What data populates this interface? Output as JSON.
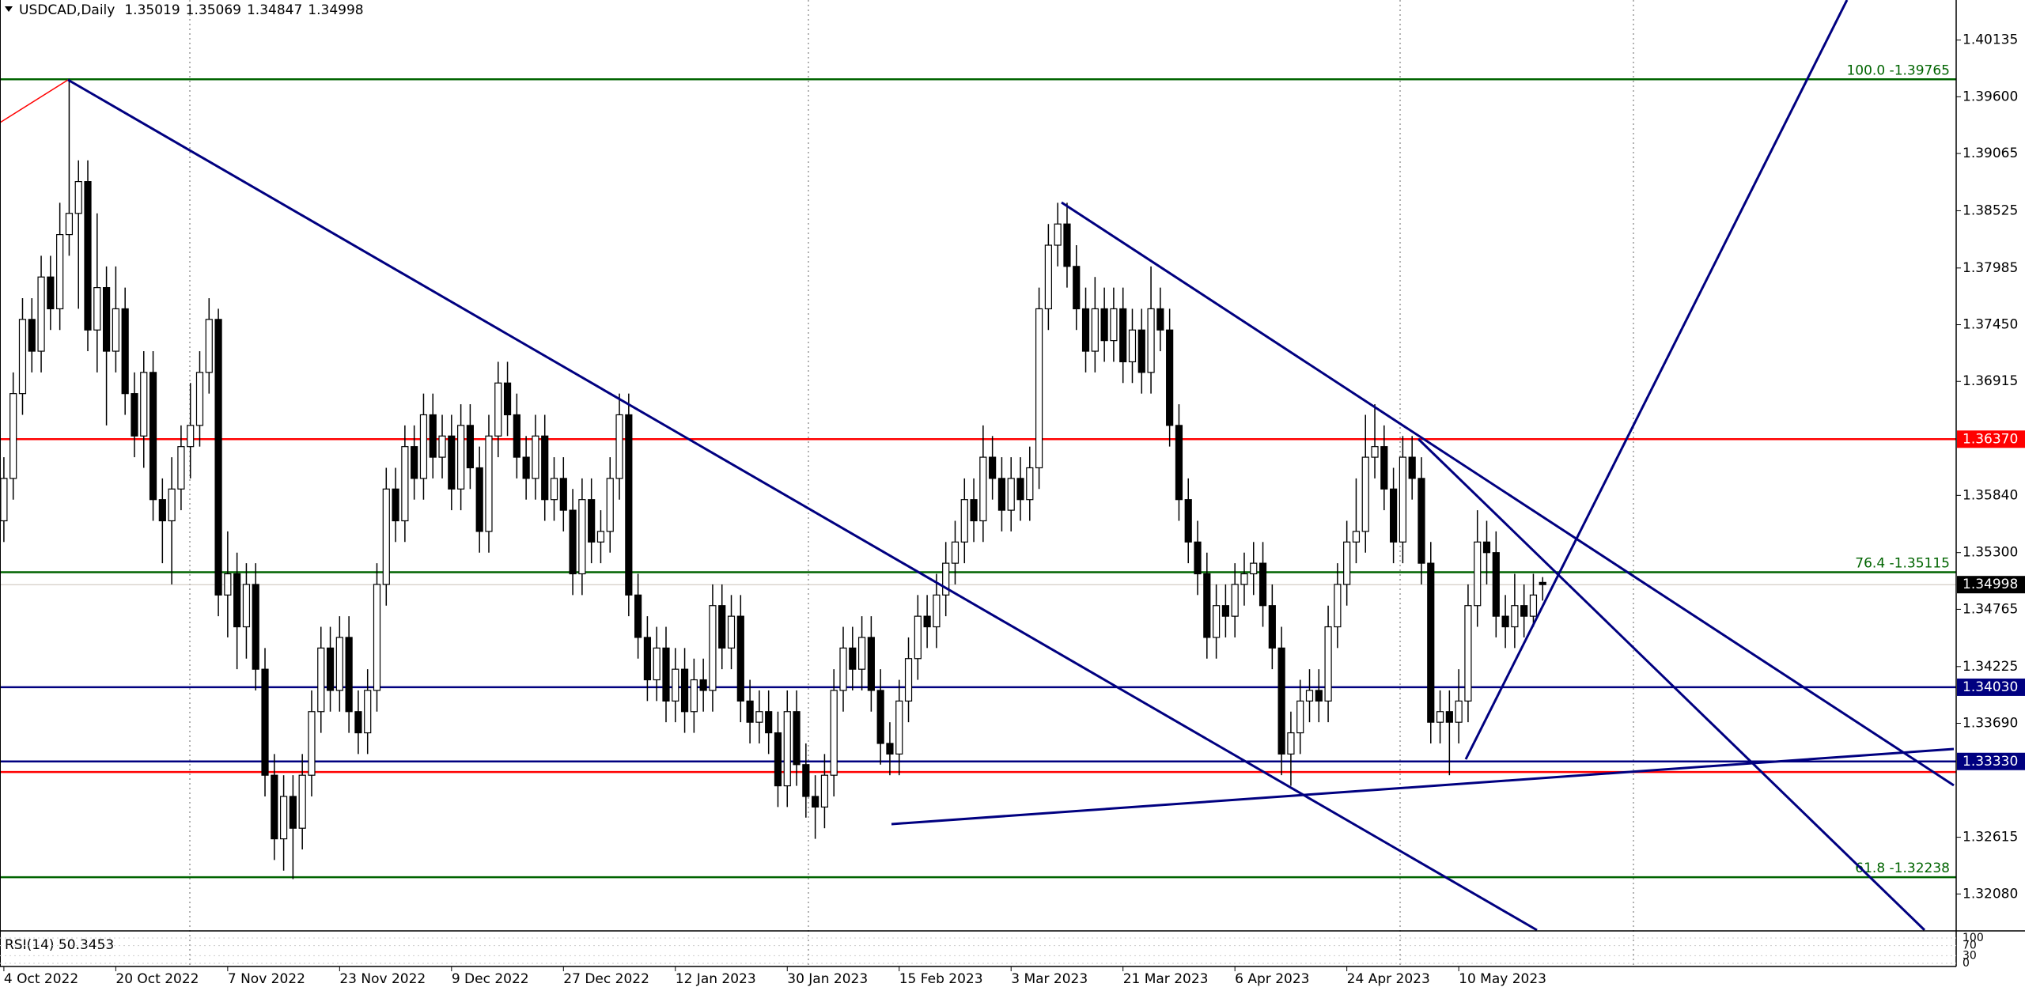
{
  "chart_data": {
    "type": "candlestick",
    "symbol": "USDCAD,Daily",
    "categories": [
      "4 Oct 2022",
      null,
      null,
      null,
      null,
      null,
      null,
      null,
      null,
      null,
      null,
      null,
      "20 Oct 2022",
      null,
      null,
      null,
      null,
      null,
      null,
      null,
      null,
      null,
      null,
      null,
      "7 Nov 2022",
      null,
      null,
      null,
      null,
      null,
      null,
      null,
      null,
      null,
      null,
      null,
      "23 Nov 2022",
      null,
      null,
      null,
      null,
      null,
      null,
      null,
      null,
      null,
      null,
      null,
      "9 Dec 2022",
      null,
      null,
      null,
      null,
      null,
      null,
      null,
      null,
      null,
      null,
      null,
      "27 Dec 2022",
      null,
      null,
      null,
      null,
      null,
      null,
      null,
      null,
      null,
      null,
      null,
      "12 Jan 2023",
      null,
      null,
      null,
      null,
      null,
      null,
      null,
      null,
      null,
      null,
      null,
      "30 Jan 2023",
      null,
      null,
      null,
      null,
      null,
      null,
      null,
      null,
      null,
      null,
      null,
      "15 Feb 2023",
      null,
      null,
      null,
      null,
      null,
      null,
      null,
      null,
      null,
      null,
      null,
      "3 Mar 2023",
      null,
      null,
      null,
      null,
      null,
      null,
      null,
      null,
      null,
      null,
      null,
      "21 Mar 2023",
      null,
      null,
      null,
      null,
      null,
      null,
      null,
      null,
      null,
      null,
      null,
      "6 Apr 2023",
      null,
      null,
      null,
      null,
      null,
      null,
      null,
      null,
      null,
      null,
      null,
      "24 Apr 2023",
      null,
      null,
      null,
      null,
      null,
      null,
      null,
      null,
      null,
      null,
      null,
      "10 May 2023",
      null,
      null,
      null,
      null,
      null,
      null,
      null,
      null,
      null
    ],
    "open": [
      1.356,
      1.36,
      1.368,
      1.375,
      1.372,
      1.379,
      1.376,
      1.383,
      1.385,
      1.388,
      1.374,
      1.378,
      1.372,
      1.376,
      1.368,
      1.364,
      1.37,
      1.358,
      1.356,
      1.359,
      1.363,
      1.365,
      1.37,
      1.375,
      1.349,
      1.351,
      1.346,
      1.35,
      1.342,
      1.332,
      1.326,
      1.33,
      1.327,
      1.332,
      1.338,
      1.344,
      1.34,
      1.345,
      1.338,
      1.336,
      1.34,
      1.35,
      1.359,
      1.356,
      1.363,
      1.36,
      1.366,
      1.362,
      1.364,
      1.359,
      1.365,
      1.361,
      1.355,
      1.364,
      1.369,
      1.366,
      1.362,
      1.36,
      1.364,
      1.358,
      1.36,
      1.357,
      1.351,
      1.358,
      1.354,
      1.355,
      1.36,
      1.366,
      1.349,
      1.345,
      1.341,
      1.344,
      1.339,
      1.342,
      1.338,
      1.341,
      1.34,
      1.348,
      1.344,
      1.347,
      1.339,
      1.337,
      1.338,
      1.336,
      1.331,
      1.338,
      1.333,
      1.33,
      1.329,
      1.332,
      1.34,
      1.344,
      1.342,
      1.345,
      1.34,
      1.335,
      1.334,
      1.339,
      1.343,
      1.347,
      1.346,
      1.349,
      1.352,
      1.354,
      1.358,
      1.356,
      1.362,
      1.36,
      1.357,
      1.36,
      1.358,
      1.361,
      1.376,
      1.382,
      1.384,
      1.38,
      1.376,
      1.372,
      1.376,
      1.373,
      1.376,
      1.371,
      1.374,
      1.37,
      1.376,
      1.374,
      1.365,
      1.358,
      1.354,
      1.351,
      1.345,
      1.348,
      1.347,
      1.35,
      1.351,
      1.352,
      1.348,
      1.344,
      1.334,
      1.336,
      1.339,
      1.34,
      1.339,
      1.346,
      1.35,
      1.354,
      1.355,
      1.362,
      1.363,
      1.359,
      1.354,
      1.362,
      1.36,
      1.352,
      1.337,
      1.338,
      1.337,
      1.339,
      1.348,
      1.354,
      1.353,
      1.347,
      1.346,
      1.348,
      1.347,
      1.35019
    ],
    "high": [
      1.362,
      1.37,
      1.377,
      1.377,
      1.381,
      1.381,
      1.386,
      1.3977,
      1.39,
      1.39,
      1.385,
      1.38,
      1.38,
      1.378,
      1.37,
      1.372,
      1.372,
      1.36,
      1.362,
      1.365,
      1.369,
      1.372,
      1.377,
      1.376,
      1.355,
      1.353,
      1.352,
      1.352,
      1.344,
      1.334,
      1.332,
      1.332,
      1.334,
      1.34,
      1.346,
      1.346,
      1.347,
      1.347,
      1.34,
      1.342,
      1.352,
      1.361,
      1.361,
      1.365,
      1.365,
      1.368,
      1.368,
      1.366,
      1.366,
      1.367,
      1.367,
      1.363,
      1.366,
      1.371,
      1.371,
      1.368,
      1.364,
      1.366,
      1.366,
      1.362,
      1.362,
      1.359,
      1.36,
      1.36,
      1.357,
      1.362,
      1.368,
      1.368,
      1.351,
      1.347,
      1.346,
      1.346,
      1.344,
      1.344,
      1.343,
      1.343,
      1.35,
      1.35,
      1.349,
      1.349,
      1.341,
      1.34,
      1.34,
      1.338,
      1.34,
      1.34,
      1.335,
      1.332,
      1.334,
      1.342,
      1.346,
      1.346,
      1.347,
      1.347,
      1.342,
      1.337,
      1.341,
      1.345,
      1.349,
      1.349,
      1.351,
      1.354,
      1.356,
      1.36,
      1.36,
      1.365,
      1.364,
      1.362,
      1.362,
      1.362,
      1.363,
      1.378,
      1.384,
      1.386,
      1.386,
      1.382,
      1.378,
      1.379,
      1.378,
      1.378,
      1.378,
      1.376,
      1.376,
      1.38,
      1.378,
      1.376,
      1.367,
      1.36,
      1.356,
      1.353,
      1.35,
      1.35,
      1.352,
      1.353,
      1.354,
      1.354,
      1.35,
      1.346,
      1.338,
      1.341,
      1.342,
      1.342,
      1.348,
      1.352,
      1.356,
      1.36,
      1.366,
      1.367,
      1.365,
      1.361,
      1.364,
      1.364,
      1.362,
      1.354,
      1.34,
      1.34,
      1.342,
      1.35,
      1.357,
      1.356,
      1.355,
      1.349,
      1.351,
      1.35,
      1.351,
      1.35069
    ],
    "low": [
      1.354,
      1.358,
      1.366,
      1.37,
      1.37,
      1.374,
      1.374,
      1.381,
      1.376,
      1.372,
      1.37,
      1.365,
      1.37,
      1.366,
      1.362,
      1.361,
      1.356,
      1.352,
      1.35,
      1.357,
      1.36,
      1.363,
      1.368,
      1.347,
      1.345,
      1.342,
      1.343,
      1.34,
      1.33,
      1.324,
      1.323,
      1.3222,
      1.325,
      1.33,
      1.336,
      1.338,
      1.338,
      1.336,
      1.334,
      1.334,
      1.338,
      1.348,
      1.354,
      1.354,
      1.358,
      1.358,
      1.36,
      1.36,
      1.357,
      1.357,
      1.359,
      1.353,
      1.353,
      1.362,
      1.364,
      1.36,
      1.358,
      1.358,
      1.356,
      1.356,
      1.355,
      1.349,
      1.349,
      1.352,
      1.352,
      1.353,
      1.358,
      1.347,
      1.343,
      1.339,
      1.339,
      1.337,
      1.337,
      1.336,
      1.336,
      1.338,
      1.338,
      1.342,
      1.342,
      1.337,
      1.335,
      1.335,
      1.334,
      1.329,
      1.329,
      1.331,
      1.328,
      1.326,
      1.327,
      1.33,
      1.338,
      1.34,
      1.34,
      1.338,
      1.333,
      1.332,
      1.332,
      1.337,
      1.341,
      1.344,
      1.344,
      1.347,
      1.35,
      1.352,
      1.354,
      1.354,
      1.358,
      1.355,
      1.355,
      1.356,
      1.356,
      1.359,
      1.374,
      1.38,
      1.378,
      1.374,
      1.37,
      1.37,
      1.371,
      1.371,
      1.369,
      1.369,
      1.368,
      1.368,
      1.372,
      1.363,
      1.356,
      1.352,
      1.349,
      1.343,
      1.343,
      1.345,
      1.345,
      1.348,
      1.349,
      1.346,
      1.342,
      1.332,
      1.331,
      1.334,
      1.337,
      1.337,
      1.337,
      1.344,
      1.348,
      1.352,
      1.353,
      1.36,
      1.357,
      1.352,
      1.352,
      1.358,
      1.35,
      1.335,
      1.335,
      1.332,
      1.335,
      1.337,
      1.346,
      1.35,
      1.345,
      1.344,
      1.344,
      1.345,
      1.346,
      1.34847
    ],
    "close": [
      1.36,
      1.368,
      1.375,
      1.372,
      1.379,
      1.376,
      1.383,
      1.385,
      1.388,
      1.374,
      1.378,
      1.372,
      1.376,
      1.368,
      1.364,
      1.37,
      1.358,
      1.356,
      1.359,
      1.363,
      1.365,
      1.37,
      1.375,
      1.349,
      1.351,
      1.346,
      1.35,
      1.342,
      1.332,
      1.326,
      1.33,
      1.327,
      1.332,
      1.338,
      1.344,
      1.34,
      1.345,
      1.338,
      1.336,
      1.34,
      1.35,
      1.359,
      1.356,
      1.363,
      1.36,
      1.366,
      1.362,
      1.364,
      1.359,
      1.365,
      1.361,
      1.355,
      1.364,
      1.369,
      1.366,
      1.362,
      1.36,
      1.364,
      1.358,
      1.36,
      1.357,
      1.351,
      1.358,
      1.354,
      1.355,
      1.36,
      1.366,
      1.349,
      1.345,
      1.341,
      1.344,
      1.339,
      1.342,
      1.338,
      1.341,
      1.34,
      1.348,
      1.344,
      1.347,
      1.339,
      1.337,
      1.338,
      1.336,
      1.331,
      1.338,
      1.333,
      1.33,
      1.329,
      1.332,
      1.34,
      1.344,
      1.342,
      1.345,
      1.34,
      1.335,
      1.334,
      1.339,
      1.343,
      1.347,
      1.346,
      1.349,
      1.352,
      1.354,
      1.358,
      1.356,
      1.362,
      1.36,
      1.357,
      1.36,
      1.358,
      1.361,
      1.376,
      1.382,
      1.384,
      1.38,
      1.376,
      1.372,
      1.376,
      1.373,
      1.376,
      1.371,
      1.374,
      1.37,
      1.376,
      1.374,
      1.365,
      1.358,
      1.354,
      1.351,
      1.345,
      1.348,
      1.347,
      1.35,
      1.351,
      1.352,
      1.348,
      1.344,
      1.334,
      1.336,
      1.339,
      1.34,
      1.339,
      1.346,
      1.35,
      1.354,
      1.355,
      1.362,
      1.363,
      1.359,
      1.354,
      1.362,
      1.36,
      1.352,
      1.337,
      1.338,
      1.337,
      1.339,
      1.348,
      1.354,
      1.353,
      1.347,
      1.346,
      1.348,
      1.347,
      1.349,
      1.34998
    ],
    "ylim": [
      1.31739,
      1.40513
    ],
    "yticks": [
      1.40135,
      {
        "value": 1.396,
        "label": "1.39600"
      },
      1.39065,
      1.38525,
      1.37985,
      {
        "value": 1.3745,
        "label": "1.37450"
      },
      1.36915,
      {
        "value": 1.3584,
        "label": "1.35840"
      },
      {
        "value": 1.353,
        "label": "1.35300"
      },
      1.34765,
      1.34225,
      {
        "value": 1.3369,
        "label": "1.33690"
      },
      1.32615,
      {
        "value": 1.3208,
        "label": "1.32080"
      }
    ],
    "levels": [
      {
        "value": 1.39765,
        "color": "#006400",
        "kind": "fibo",
        "label": "100.0 -1.39765"
      },
      {
        "value": 1.35115,
        "color": "#006400",
        "kind": "fibo",
        "label": "76.4 -1.35115"
      },
      {
        "value": 1.32238,
        "color": "#006400",
        "kind": "fibo",
        "label": "61.8 -1.32238"
      },
      {
        "value": 1.3637,
        "color": "#ff0000",
        "kind": "box",
        "label": "1.36370"
      },
      {
        "value": 1.3323,
        "color": "#ff0000",
        "kind": "box"
      },
      {
        "value": 1.3403,
        "color": "#000080",
        "kind": "box",
        "label": "1.34030"
      },
      {
        "value": 1.3333,
        "color": "#000080",
        "kind": "box",
        "label": "1.33330"
      }
    ],
    "rsi_label": "RSI(14) 50.3453",
    "rsi_ylim": [
      0,
      100
    ],
    "rsi_yticks": [
      100,
      70,
      30,
      0
    ]
  }
}
